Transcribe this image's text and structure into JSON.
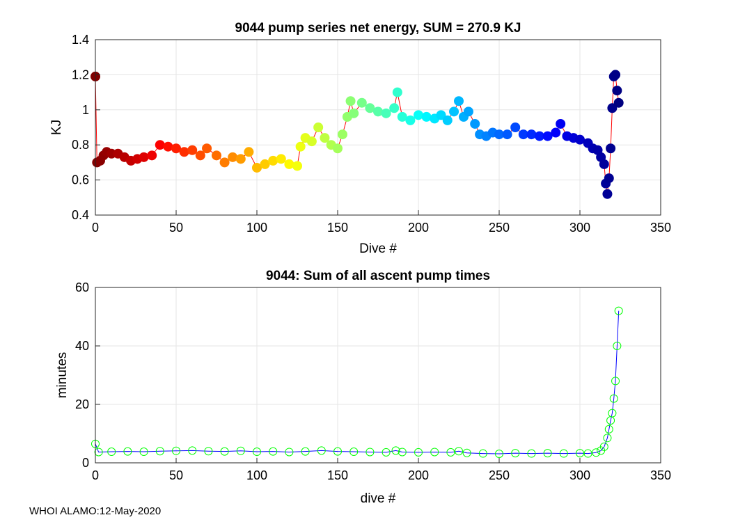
{
  "figure_id": "9044",
  "footer": "WHOI ALAMO:12-May-2020",
  "colors": {
    "top_line": "#ff0000",
    "bottom_line": "#0000ff",
    "bottom_marker": "#00ff00",
    "grid": "#e5e5e5",
    "axes": "#262626"
  },
  "chart_data": [
    {
      "type": "scatter",
      "title": "9044 pump series net energy, SUM = 270.9 KJ",
      "xlabel": "Dive #",
      "ylabel": "KJ",
      "xlim": [
        0,
        350
      ],
      "ylim": [
        0.4,
        1.4
      ],
      "xticks": [
        "0",
        "50",
        "100",
        "150",
        "200",
        "250",
        "300",
        "350"
      ],
      "yticks": [
        "0.4",
        "0.6",
        "0.8",
        "1",
        "1.2",
        "1.4"
      ],
      "grid": true,
      "colormap": "jet (reversed, dark red at dive 0 to dark blue at last dive)",
      "line_color": "#ff0000",
      "series": [
        {
          "x": [
            0,
            1,
            3,
            5,
            7,
            10,
            14,
            18,
            22,
            26,
            30,
            35,
            40,
            45,
            50,
            55,
            60,
            65,
            69,
            75,
            80,
            85,
            90,
            95,
            100,
            105,
            110,
            115,
            120,
            125,
            127,
            130,
            134,
            138,
            142,
            146,
            150,
            153,
            156,
            158,
            160,
            165,
            170,
            175,
            180,
            185,
            187,
            190,
            195,
            200,
            205,
            210,
            214,
            218,
            222,
            225,
            228,
            231,
            235,
            238,
            242,
            246,
            250,
            255,
            260,
            265,
            270,
            275,
            280,
            285,
            288,
            292,
            296,
            300,
            305,
            308,
            311,
            313,
            315,
            316,
            317,
            318,
            319,
            320,
            321,
            322,
            323,
            324
          ],
          "y": [
            1.19,
            0.7,
            0.71,
            0.74,
            0.76,
            0.75,
            0.75,
            0.73,
            0.71,
            0.72,
            0.73,
            0.74,
            0.8,
            0.79,
            0.78,
            0.76,
            0.77,
            0.74,
            0.78,
            0.74,
            0.7,
            0.73,
            0.72,
            0.76,
            0.67,
            0.69,
            0.71,
            0.72,
            0.69,
            0.68,
            0.79,
            0.84,
            0.82,
            0.9,
            0.84,
            0.8,
            0.78,
            0.86,
            0.96,
            1.05,
            0.98,
            1.04,
            1.01,
            0.99,
            0.98,
            1.01,
            1.1,
            0.96,
            0.94,
            0.97,
            0.96,
            0.95,
            0.97,
            0.94,
            0.99,
            1.05,
            0.96,
            0.99,
            0.92,
            0.86,
            0.85,
            0.87,
            0.86,
            0.86,
            0.9,
            0.86,
            0.86,
            0.85,
            0.85,
            0.87,
            0.92,
            0.85,
            0.84,
            0.83,
            0.81,
            0.78,
            0.77,
            0.73,
            0.69,
            0.58,
            0.52,
            0.61,
            0.78,
            1.01,
            1.19,
            1.2,
            1.11,
            1.04
          ]
        }
      ]
    },
    {
      "type": "line",
      "title": "9044: Sum of all ascent pump times",
      "xlabel": "dive #",
      "ylabel": "minutes",
      "xlim": [
        0,
        350
      ],
      "ylim": [
        0,
        60
      ],
      "xticks": [
        "0",
        "50",
        "100",
        "150",
        "200",
        "250",
        "300",
        "350"
      ],
      "yticks": [
        "0",
        "20",
        "40",
        "60"
      ],
      "grid": true,
      "series": [
        {
          "x": [
            0,
            2,
            10,
            20,
            30,
            40,
            50,
            60,
            70,
            80,
            90,
            100,
            110,
            120,
            130,
            140,
            150,
            160,
            170,
            180,
            186,
            190,
            200,
            210,
            220,
            225,
            230,
            240,
            250,
            260,
            270,
            280,
            290,
            300,
            305,
            310,
            313,
            315,
            317,
            318,
            319,
            320,
            321,
            322,
            323,
            324
          ],
          "y": [
            6.5,
            3.7,
            3.8,
            3.9,
            3.8,
            4.0,
            4.1,
            4.2,
            4.0,
            3.9,
            4.1,
            3.8,
            3.9,
            3.7,
            3.9,
            4.2,
            3.9,
            3.8,
            3.7,
            3.6,
            4.2,
            3.7,
            3.6,
            3.7,
            3.6,
            4.0,
            3.4,
            3.2,
            3.1,
            3.3,
            3.2,
            3.3,
            3.2,
            3.3,
            3.2,
            3.5,
            4.2,
            5.5,
            8.5,
            11.5,
            14.5,
            17.0,
            22.0,
            28.0,
            40.0,
            52.0
          ]
        }
      ]
    }
  ]
}
